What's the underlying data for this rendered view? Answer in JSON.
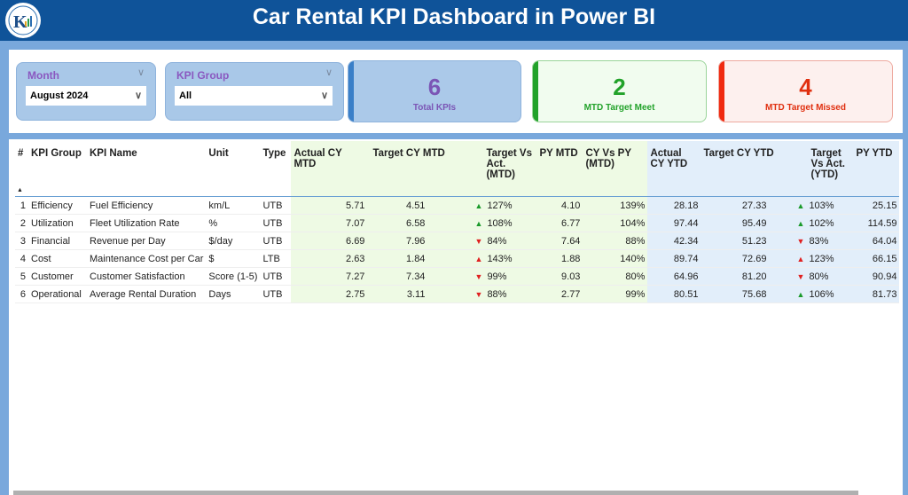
{
  "header": {
    "title": "Car Rental KPI Dashboard in Power BI",
    "logo_text": "K"
  },
  "filters": {
    "month": {
      "label": "Month",
      "value": "August 2024"
    },
    "kpi_group": {
      "label": "KPI Group",
      "value": "All"
    }
  },
  "cards": [
    {
      "value": "6",
      "label": "Total KPIs",
      "color": "#7b55b5"
    },
    {
      "value": "2",
      "label": "MTD Target Meet",
      "color": "#22a22a"
    },
    {
      "value": "4",
      "label": "MTD Target Missed",
      "color": "#e03010"
    }
  ],
  "table": {
    "columns": [
      "#",
      "KPI Group",
      "KPI Name",
      "Unit",
      "Type",
      "Actual CY MTD",
      "Target CY MTD",
      "Target Vs Act. (MTD)",
      "PY MTD",
      "CY Vs PY (MTD)",
      "Actual CY YTD",
      "Target CY YTD",
      "Target Vs Act. (YTD)",
      "PY YTD"
    ],
    "rows": [
      {
        "n": "1",
        "group": "Efficiency",
        "name": "Fuel Efficiency",
        "unit": "km/L",
        "type": "UTB",
        "acy_mtd": "5.71",
        "tcy_mtd": "4.51",
        "tva_mtd_icon": "up-green",
        "tva_mtd": "127%",
        "py_mtd": "4.10",
        "cvp_mtd": "139%",
        "acy_ytd": "28.18",
        "tcy_ytd": "27.33",
        "tva_ytd_icon": "up-green",
        "tva_ytd": "103%",
        "py_ytd": "25.15"
      },
      {
        "n": "2",
        "group": "Utilization",
        "name": "Fleet Utilization Rate",
        "unit": "%",
        "type": "UTB",
        "acy_mtd": "7.07",
        "tcy_mtd": "6.58",
        "tva_mtd_icon": "up-green",
        "tva_mtd": "108%",
        "py_mtd": "6.77",
        "cvp_mtd": "104%",
        "acy_ytd": "97.44",
        "tcy_ytd": "95.49",
        "tva_ytd_icon": "up-green",
        "tva_ytd": "102%",
        "py_ytd": "114.59"
      },
      {
        "n": "3",
        "group": "Financial",
        "name": "Revenue per Day",
        "unit": "$/day",
        "type": "UTB",
        "acy_mtd": "6.69",
        "tcy_mtd": "7.96",
        "tva_mtd_icon": "down-red",
        "tva_mtd": "84%",
        "py_mtd": "7.64",
        "cvp_mtd": "88%",
        "acy_ytd": "42.34",
        "tcy_ytd": "51.23",
        "tva_ytd_icon": "down-red",
        "tva_ytd": "83%",
        "py_ytd": "64.04"
      },
      {
        "n": "4",
        "group": "Cost",
        "name": "Maintenance Cost per Car",
        "unit": "$",
        "type": "LTB",
        "acy_mtd": "2.63",
        "tcy_mtd": "1.84",
        "tva_mtd_icon": "up-red",
        "tva_mtd": "143%",
        "py_mtd": "1.88",
        "cvp_mtd": "140%",
        "acy_ytd": "89.74",
        "tcy_ytd": "72.69",
        "tva_ytd_icon": "up-red",
        "tva_ytd": "123%",
        "py_ytd": "66.15"
      },
      {
        "n": "5",
        "group": "Customer",
        "name": "Customer Satisfaction",
        "unit": "Score (1-5)",
        "type": "UTB",
        "acy_mtd": "7.27",
        "tcy_mtd": "7.34",
        "tva_mtd_icon": "down-red",
        "tva_mtd": "99%",
        "py_mtd": "9.03",
        "cvp_mtd": "80%",
        "acy_ytd": "64.96",
        "tcy_ytd": "81.20",
        "tva_ytd_icon": "down-red",
        "tva_ytd": "80%",
        "py_ytd": "90.94"
      },
      {
        "n": "6",
        "group": "Operational",
        "name": "Average Rental Duration",
        "unit": "Days",
        "type": "UTB",
        "acy_mtd": "2.75",
        "tcy_mtd": "3.11",
        "tva_mtd_icon": "down-red",
        "tva_mtd": "88%",
        "py_mtd": "2.77",
        "cvp_mtd": "99%",
        "acy_ytd": "80.51",
        "tcy_ytd": "75.68",
        "tva_ytd_icon": "up-green",
        "tva_ytd": "106%",
        "py_ytd": "81.73"
      }
    ]
  }
}
